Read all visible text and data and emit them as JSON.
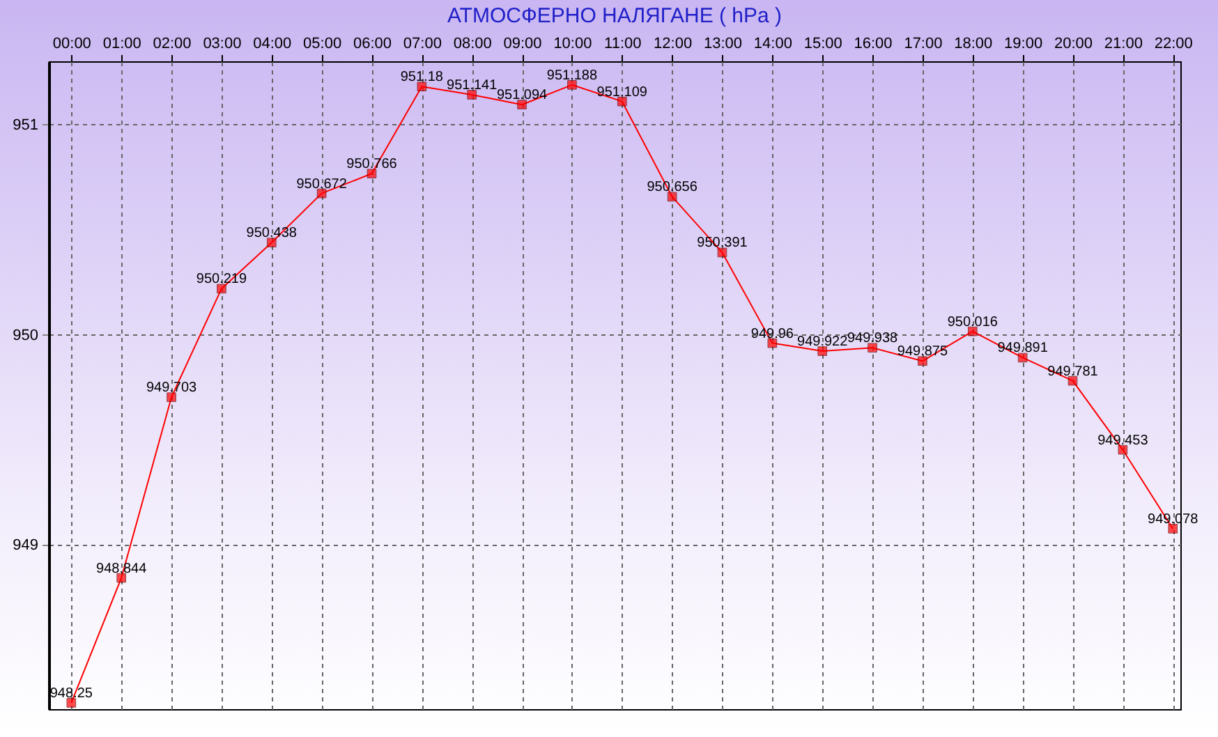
{
  "chart_data": {
    "type": "line",
    "title": "АТМОСФЕРНО НАЛЯГАНЕ  ( hPa )",
    "categories": [
      "00:00",
      "01:00",
      "02:00",
      "03:00",
      "04:00",
      "05:00",
      "06:00",
      "07:00",
      "08:00",
      "09:00",
      "10:00",
      "11:00",
      "12:00",
      "13:00",
      "14:00",
      "15:00",
      "16:00",
      "17:00",
      "18:00",
      "19:00",
      "20:00",
      "21:00",
      "22:00"
    ],
    "series": [
      {
        "color": "#ff0000",
        "values": [
          948.25,
          948.844,
          949.703,
          950.219,
          950.438,
          950.672,
          950.766,
          951.18,
          951.141,
          951.094,
          951.188,
          951.109,
          950.656,
          950.391,
          949.96,
          949.922,
          949.938,
          949.875,
          950.016,
          949.891,
          949.781,
          949.453,
          949.078
        ]
      }
    ],
    "ylim": [
      948.22,
      951.3
    ],
    "yticks": [
      949,
      950,
      951
    ],
    "grid": true,
    "marker": "square",
    "data_labels": true,
    "legend": false
  }
}
